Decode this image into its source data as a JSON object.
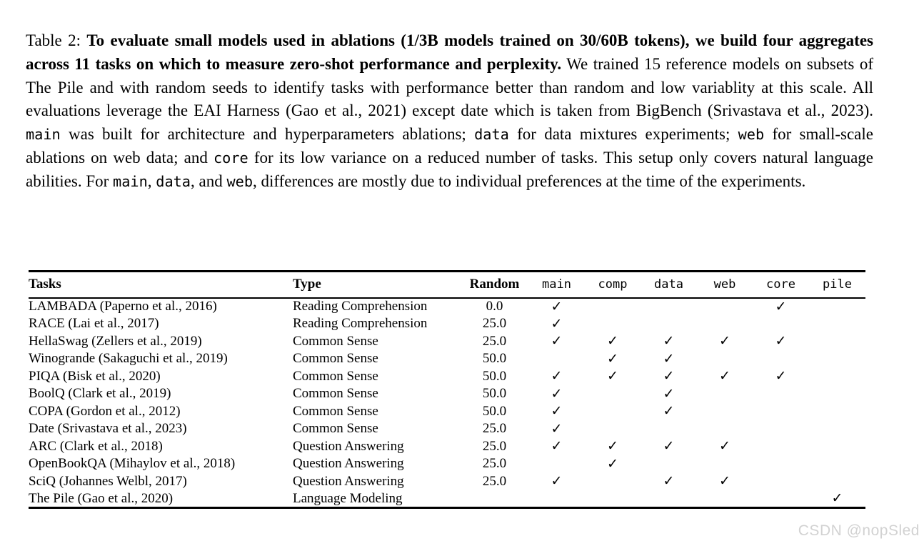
{
  "caption": {
    "segments": [
      {
        "text": "Table 2: ",
        "style": "regular"
      },
      {
        "text": "To evaluate small models used in ablations (1/3B models trained on 30/60B tokens), we build four aggregates across 11 tasks on which to measure zero-shot performance and perplexity.",
        "style": "bold"
      },
      {
        "text": " We trained 15 reference models on subsets of The Pile and with random seeds to identify tasks with performance better than random and low variablity at this scale. All evaluations leverage the EAI Harness (Gao et al., 2021) except date which is taken from BigBench (Srivastava et al., 2023). ",
        "style": "regular"
      },
      {
        "text": "main",
        "style": "mono"
      },
      {
        "text": " was built for architecture and hyperparameters ablations; ",
        "style": "regular"
      },
      {
        "text": "data",
        "style": "mono"
      },
      {
        "text": " for data mixtures experiments; ",
        "style": "regular"
      },
      {
        "text": "web",
        "style": "mono"
      },
      {
        "text": " for small-scale ablations on web data; and ",
        "style": "regular"
      },
      {
        "text": "core",
        "style": "mono"
      },
      {
        "text": " for its low variance on a reduced number of tasks. This setup only covers natural language abilities. For ",
        "style": "regular"
      },
      {
        "text": "main",
        "style": "mono"
      },
      {
        "text": ", ",
        "style": "regular"
      },
      {
        "text": "data",
        "style": "mono"
      },
      {
        "text": ", and ",
        "style": "regular"
      },
      {
        "text": "web",
        "style": "mono"
      },
      {
        "text": ", differences are mostly due to individual preferences at the time of the experiments.",
        "style": "regular"
      }
    ]
  },
  "table": {
    "columns": [
      "Tasks",
      "Type",
      "Random",
      "main",
      "comp",
      "data",
      "web",
      "core",
      "pile"
    ],
    "check_glyph": "✓",
    "rows": [
      {
        "task": "LAMBADA (Paperno et al., 2016)",
        "type": "Reading Comprehension",
        "random": "0.0",
        "checks": [
          true,
          false,
          false,
          false,
          true,
          false
        ]
      },
      {
        "task": "RACE (Lai et al., 2017)",
        "type": "Reading Comprehension",
        "random": "25.0",
        "checks": [
          true,
          false,
          false,
          false,
          false,
          false
        ]
      },
      {
        "task": "HellaSwag (Zellers et al., 2019)",
        "type": "Common Sense",
        "random": "25.0",
        "checks": [
          true,
          true,
          true,
          true,
          true,
          false
        ]
      },
      {
        "task": "Winogrande (Sakaguchi et al., 2019)",
        "type": "Common Sense",
        "random": "50.0",
        "checks": [
          false,
          true,
          true,
          false,
          false,
          false
        ]
      },
      {
        "task": "PIQA (Bisk et al., 2020)",
        "type": "Common Sense",
        "random": "50.0",
        "checks": [
          true,
          true,
          true,
          true,
          true,
          false
        ]
      },
      {
        "task": "BoolQ (Clark et al., 2019)",
        "type": "Common Sense",
        "random": "50.0",
        "checks": [
          true,
          false,
          true,
          false,
          false,
          false
        ]
      },
      {
        "task": "COPA (Gordon et al., 2012)",
        "type": "Common Sense",
        "random": "50.0",
        "checks": [
          true,
          false,
          true,
          false,
          false,
          false
        ]
      },
      {
        "task": "Date (Srivastava et al., 2023)",
        "type": "Common Sense",
        "random": "25.0",
        "checks": [
          true,
          false,
          false,
          false,
          false,
          false
        ]
      },
      {
        "task": "ARC (Clark et al., 2018)",
        "type": "Question Answering",
        "random": "25.0",
        "checks": [
          true,
          true,
          true,
          true,
          false,
          false
        ]
      },
      {
        "task": "OpenBookQA (Mihaylov et al., 2018)",
        "type": "Question Answering",
        "random": "25.0",
        "checks": [
          false,
          true,
          false,
          false,
          false,
          false
        ]
      },
      {
        "task": "SciQ (Johannes Welbl, 2017)",
        "type": "Question Answering",
        "random": "25.0",
        "checks": [
          true,
          false,
          true,
          true,
          false,
          false
        ]
      },
      {
        "task": "The Pile (Gao et al., 2020)",
        "type": "Language Modeling",
        "random": "",
        "checks": [
          false,
          false,
          false,
          false,
          false,
          true
        ]
      }
    ]
  },
  "watermark": "CSDN @nopSled"
}
